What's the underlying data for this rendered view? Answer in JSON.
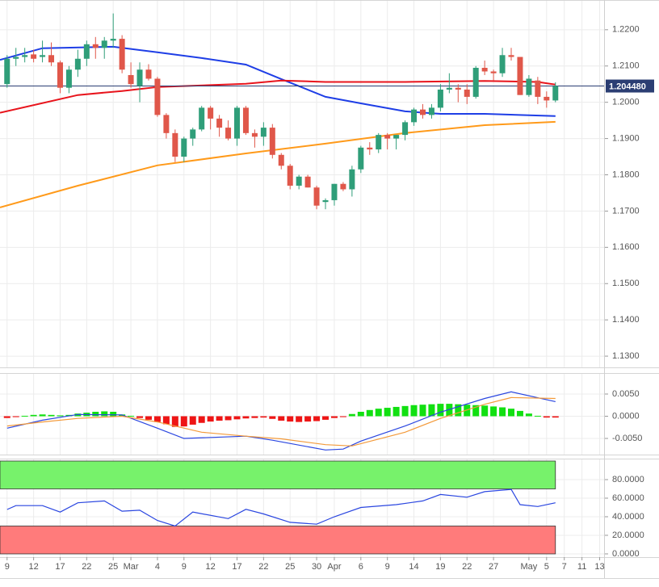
{
  "chart_data": [
    {
      "type": "candlestick",
      "x": [
        0,
        1,
        2,
        3,
        4,
        5,
        6,
        7,
        8,
        9,
        10,
        11,
        12,
        13,
        14,
        15,
        16,
        17,
        18,
        19,
        20,
        21,
        22,
        23,
        24,
        25,
        26,
        27,
        28,
        29,
        30,
        31,
        32,
        33,
        34,
        35,
        36,
        37,
        38,
        39,
        40,
        41,
        42,
        43,
        44,
        45,
        46,
        47,
        48,
        49,
        50,
        51,
        52,
        53,
        54,
        55,
        56,
        57,
        58,
        59,
        60,
        61,
        62
      ],
      "open": [
        1.205,
        1.212,
        1.2125,
        1.2132,
        1.2125,
        1.213,
        1.211,
        1.204,
        1.209,
        1.212,
        1.216,
        1.215,
        1.217,
        1.2175,
        1.2075,
        1.2045,
        1.209,
        1.2065,
        1.1965,
        1.1915,
        1.185,
        1.19,
        1.1925,
        1.1985,
        1.1955,
        1.193,
        1.19,
        1.1985,
        1.1915,
        1.1905,
        1.193,
        1.1855,
        1.1825,
        1.177,
        1.1795,
        1.1765,
        1.1725,
        1.173,
        1.1775,
        1.176,
        1.1815,
        1.1875,
        1.187,
        1.191,
        1.19,
        1.191,
        1.1945,
        1.198,
        1.1965,
        1.1985,
        1.2035,
        1.204,
        1.2035,
        1.2015,
        1.2095,
        1.2085,
        1.208,
        1.213,
        1.2125,
        1.202,
        1.206,
        1.2015,
        1.2005
      ],
      "high": [
        1.213,
        1.215,
        1.215,
        1.2145,
        1.217,
        1.2165,
        1.2115,
        1.21,
        1.2145,
        1.217,
        1.218,
        1.218,
        1.2245,
        1.2185,
        1.211,
        1.211,
        1.2105,
        1.207,
        1.197,
        1.1925,
        1.1905,
        1.193,
        1.199,
        1.199,
        1.1965,
        1.195,
        1.199,
        1.199,
        1.1925,
        1.1945,
        1.194,
        1.186,
        1.183,
        1.18,
        1.18,
        1.177,
        1.1735,
        1.1775,
        1.178,
        1.1825,
        1.188,
        1.189,
        1.1915,
        1.1915,
        1.191,
        1.195,
        1.1985,
        1.1995,
        1.1995,
        1.205,
        1.208,
        1.205,
        1.205,
        1.21,
        1.2115,
        1.209,
        1.215,
        1.215,
        1.2125,
        1.2075,
        1.207,
        1.203,
        1.2055
      ],
      "low": [
        1.204,
        1.21,
        1.211,
        1.211,
        1.211,
        1.21,
        1.2025,
        1.2025,
        1.207,
        1.21,
        1.212,
        1.212,
        1.215,
        1.208,
        1.204,
        1.2,
        1.206,
        1.196,
        1.19,
        1.1835,
        1.1835,
        1.188,
        1.192,
        1.1925,
        1.1905,
        1.1895,
        1.188,
        1.191,
        1.1875,
        1.188,
        1.1845,
        1.1815,
        1.176,
        1.176,
        1.1765,
        1.1705,
        1.1705,
        1.1715,
        1.1755,
        1.174,
        1.1805,
        1.1855,
        1.186,
        1.187,
        1.187,
        1.1895,
        1.1935,
        1.1955,
        1.1955,
        1.1975,
        1.2025,
        1.2,
        1.1995,
        1.201,
        1.2075,
        1.206,
        1.207,
        1.2115,
        1.202,
        1.2015,
        1.1995,
        1.1985,
        1.2
      ],
      "close": [
        1.212,
        1.2125,
        1.213,
        1.212,
        1.213,
        1.211,
        1.204,
        1.209,
        1.212,
        1.216,
        1.215,
        1.217,
        1.2175,
        1.209,
        1.205,
        1.209,
        1.2065,
        1.1965,
        1.1915,
        1.185,
        1.19,
        1.1925,
        1.1985,
        1.1955,
        1.193,
        1.19,
        1.1985,
        1.1915,
        1.1905,
        1.193,
        1.1855,
        1.1825,
        1.177,
        1.1795,
        1.1765,
        1.1715,
        1.173,
        1.1775,
        1.176,
        1.1815,
        1.1875,
        1.187,
        1.191,
        1.19,
        1.191,
        1.1945,
        1.198,
        1.1965,
        1.1985,
        1.2035,
        1.204,
        1.2035,
        1.2015,
        1.2095,
        1.2085,
        1.208,
        1.213,
        1.2125,
        1.202,
        1.2065,
        1.2015,
        1.2005,
        1.2045
      ],
      "up_color": "#2f9e79",
      "down_color": "#e0574a",
      "lines": [
        {
          "color": "#1e3ee6",
          "x": [
            -0.8,
            4,
            12,
            17,
            22,
            27,
            31,
            36,
            40,
            45,
            49,
            54,
            62
          ],
          "values": [
            1.2117,
            1.2149,
            1.2153,
            1.2138,
            1.2122,
            1.2104,
            1.2064,
            1.2015,
            1.1997,
            1.1975,
            1.1968,
            1.1968,
            1.1962
          ]
        },
        {
          "color": "#e8141c",
          "x": [
            -0.8,
            8,
            13,
            17,
            27,
            31,
            36,
            45,
            54,
            60,
            62
          ],
          "values": [
            1.1971,
            1.202,
            1.2031,
            1.2042,
            1.2051,
            1.206,
            1.2056,
            1.2056,
            1.2059,
            1.2056,
            1.2049
          ]
        },
        {
          "color": "#ff9a1a",
          "x": [
            -0.8,
            8,
            17,
            27,
            36,
            45,
            54,
            62
          ],
          "values": [
            1.171,
            1.177,
            1.1826,
            1.1859,
            1.1886,
            1.1915,
            1.1937,
            1.1946
          ]
        }
      ],
      "last_price": {
        "value": 1.20448,
        "label": "1.204480"
      },
      "xlim": [
        -0.8,
        67.5
      ],
      "xticks": [
        {
          "value": 0,
          "label": "9"
        },
        {
          "value": 3,
          "label": "12"
        },
        {
          "value": 6,
          "label": "17"
        },
        {
          "value": 9,
          "label": "22"
        },
        {
          "value": 12,
          "label": "25"
        },
        {
          "value": 14,
          "label": "Mar"
        },
        {
          "value": 17,
          "label": "4"
        },
        {
          "value": 20,
          "label": "9"
        },
        {
          "value": 23,
          "label": "12"
        },
        {
          "value": 26,
          "label": "17"
        },
        {
          "value": 29,
          "label": "22"
        },
        {
          "value": 32,
          "label": "25"
        },
        {
          "value": 35,
          "label": "30"
        },
        {
          "value": 37,
          "label": "Apr"
        },
        {
          "value": 40,
          "label": "6"
        },
        {
          "value": 43,
          "label": "9"
        },
        {
          "value": 46,
          "label": "14"
        },
        {
          "value": 49,
          "label": "19"
        },
        {
          "value": 52,
          "label": "22"
        },
        {
          "value": 55,
          "label": "27"
        },
        {
          "value": 59,
          "label": "May"
        },
        {
          "value": 61,
          "label": "5"
        },
        {
          "value": 63,
          "label": "7"
        },
        {
          "value": 65,
          "label": "11"
        },
        {
          "value": 67,
          "label": "13"
        }
      ],
      "ylim": [
        1.1269,
        1.2282
      ],
      "yticks": [
        {
          "value": 1.22,
          "label": "1.2200"
        },
        {
          "value": 1.21,
          "label": "1.2100"
        },
        {
          "value": 1.2,
          "label": "1.2000"
        },
        {
          "value": 1.19,
          "label": "1.1900"
        },
        {
          "value": 1.18,
          "label": "1.1800"
        },
        {
          "value": 1.17,
          "label": "1.1700"
        },
        {
          "value": 1.16,
          "label": "1.1600"
        },
        {
          "value": 1.15,
          "label": "1.1500"
        },
        {
          "value": 1.14,
          "label": "1.1400"
        },
        {
          "value": 1.13,
          "label": "1.1300"
        }
      ],
      "grid": true
    },
    {
      "type": "bar",
      "x": [
        0,
        1,
        2,
        3,
        4,
        5,
        6,
        7,
        8,
        9,
        10,
        11,
        12,
        13,
        14,
        15,
        16,
        17,
        18,
        19,
        20,
        21,
        22,
        23,
        24,
        25,
        26,
        27,
        28,
        29,
        30,
        31,
        32,
        33,
        34,
        35,
        36,
        37,
        38,
        39,
        40,
        41,
        42,
        43,
        44,
        45,
        46,
        47,
        48,
        49,
        50,
        51,
        52,
        53,
        54,
        55,
        56,
        57,
        58,
        59,
        60,
        61,
        62
      ],
      "values": [
        -0.0004,
        -0.0002,
        0.0001,
        0.0003,
        0.0004,
        0.0003,
        0.0002,
        0.0003,
        0.0006,
        0.0008,
        0.001,
        0.0011,
        0.001,
        0.0004,
        0.0001,
        -0.0004,
        -0.0008,
        -0.0013,
        -0.0018,
        -0.0024,
        -0.0023,
        -0.0019,
        -0.0015,
        -0.0012,
        -0.001,
        -0.0009,
        -0.0007,
        -0.0005,
        -0.0004,
        -0.0003,
        -0.0006,
        -0.001,
        -0.0012,
        -0.0013,
        -0.0012,
        -0.0011,
        -0.0008,
        -0.0004,
        -0.0002,
        0.0005,
        0.001,
        0.0014,
        0.0017,
        0.0019,
        0.0021,
        0.0023,
        0.0025,
        0.0026,
        0.0027,
        0.0028,
        0.0028,
        0.0027,
        0.0026,
        0.0025,
        0.0024,
        0.0022,
        0.002,
        0.0017,
        0.0012,
        0.0006,
        0.0001,
        -0.0003,
        -0.0003
      ],
      "positive_color": "#11e011",
      "negative_color": "#ee1515",
      "series": [
        {
          "color": "#2a46e0",
          "x": [
            0,
            4,
            8,
            13,
            17,
            20,
            27,
            30,
            36,
            38,
            40,
            45,
            49,
            54,
            57,
            62
          ],
          "values": [
            -0.0027,
            -0.0009,
            0.0004,
            0.0003,
            -0.0027,
            -0.005,
            -0.0045,
            -0.0054,
            -0.0076,
            -0.0074,
            -0.0056,
            -0.0022,
            0.0009,
            0.004,
            0.0055,
            0.0033
          ]
        },
        {
          "color": "#f39a3a",
          "x": [
            0,
            4,
            8,
            13,
            17,
            22,
            27,
            31,
            36,
            39,
            45,
            49,
            54,
            57,
            62
          ],
          "values": [
            -0.0022,
            -0.0013,
            -0.0005,
            0.0,
            -0.0013,
            -0.0036,
            -0.0045,
            -0.0051,
            -0.0064,
            -0.0067,
            -0.0036,
            -0.0005,
            0.0027,
            0.0042,
            0.004
          ]
        }
      ],
      "ylim": [
        -0.00864,
        0.00973
      ],
      "yticks": [
        {
          "value": 0.005,
          "label": "0.0050"
        },
        {
          "value": 0,
          "label": "0.0000"
        },
        {
          "value": -0.005,
          "label": "-0.0050"
        }
      ]
    },
    {
      "type": "line",
      "series": [
        {
          "color": "#2a46e0",
          "x": [
            0,
            1,
            4,
            6,
            8,
            11,
            13,
            15,
            17,
            19,
            21,
            25,
            27,
            29,
            32,
            35,
            37,
            40,
            44,
            47,
            49,
            52,
            54,
            57,
            58,
            60,
            62
          ],
          "values": [
            47.8,
            52,
            52,
            45,
            55,
            57,
            46,
            47,
            36,
            30,
            45,
            38,
            48,
            43,
            34,
            32,
            40,
            50,
            53,
            57,
            64,
            61,
            67,
            69.5,
            53,
            51,
            55
          ]
        }
      ],
      "bands": [
        {
          "from": 70,
          "to": 100,
          "color": "#77f26b"
        },
        {
          "from": 0,
          "to": 30,
          "color": "#ff7b7b"
        }
      ],
      "ylim": [
        -3.5,
        102.6
      ],
      "yticks": [
        {
          "value": 80,
          "label": "80.0000"
        },
        {
          "value": 60,
          "label": "60.0000"
        },
        {
          "value": 40,
          "label": "40.0000"
        },
        {
          "value": 20,
          "label": "20.0000"
        },
        {
          "value": 0,
          "label": "0.0000"
        }
      ]
    }
  ]
}
